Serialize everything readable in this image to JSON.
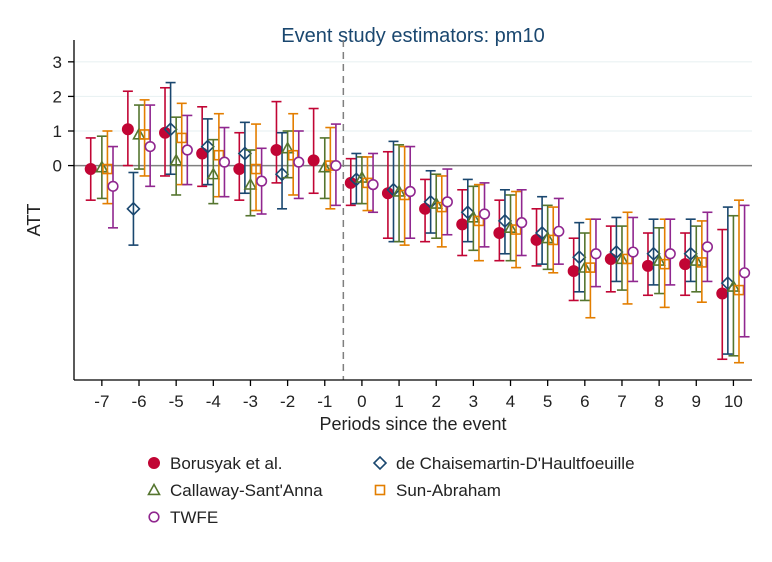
{
  "chart_data": {
    "type": "scatter",
    "title": "Event study estimators: pm10",
    "xlabel": "Periods since the event",
    "ylabel": "ATT",
    "x": [
      -7,
      -6,
      -5,
      -4,
      -3,
      -2,
      -1,
      0,
      1,
      2,
      3,
      4,
      5,
      6,
      7,
      8,
      9,
      10
    ],
    "x_tick_labels": [
      "-7",
      "-6",
      "-5",
      "-4",
      "-3",
      "-2",
      "-1",
      "0",
      "1",
      "2",
      "3",
      "4",
      "5",
      "6",
      "7",
      "8",
      "9",
      "10"
    ],
    "y_ticks": [
      3,
      2,
      1,
      0
    ],
    "y_tick_labels": [
      "3",
      "2",
      "1",
      "0"
    ],
    "ylim": [
      -6.2,
      3.4
    ],
    "xlim": [
      -7.75,
      10.5
    ],
    "event_line_x": -0.5,
    "zero_line_y": 0,
    "grid": true,
    "legend_position": "bottom",
    "series": [
      {
        "name": "Borusyak et al.",
        "marker": "filled-circle",
        "color": "#c10534",
        "offset": -0.3,
        "values": [
          -0.1,
          1.05,
          0.95,
          0.35,
          -0.1,
          0.45,
          0.15,
          -0.5,
          -0.8,
          -1.25,
          -1.7,
          -1.95,
          -2.15,
          -3.05,
          -2.7,
          -2.9,
          -2.85,
          -3.7
        ],
        "ci_low": [
          -1.0,
          0.0,
          -0.3,
          -0.6,
          -1.0,
          -0.5,
          -0.8,
          -1.15,
          -2.1,
          -2.2,
          -2.6,
          -2.75,
          -2.9,
          -3.9,
          -3.65,
          -3.75,
          -3.75,
          -5.6
        ],
        "ci_high": [
          0.8,
          2.15,
          2.25,
          1.7,
          0.95,
          1.85,
          1.65,
          0.2,
          0.4,
          -0.4,
          -0.7,
          -1.0,
          -1.25,
          -2.1,
          -1.75,
          -1.95,
          -1.95,
          -1.85
        ]
      },
      {
        "name": "de Chaisemartin-D'Haultfoeuille",
        "marker": "hollow-diamond",
        "color": "#1a476f",
        "offset": -0.15,
        "values": [
          null,
          -1.25,
          1.05,
          0.55,
          0.35,
          -0.25,
          null,
          -0.4,
          -0.7,
          -1.05,
          -1.35,
          -1.6,
          -1.95,
          -2.65,
          -2.5,
          -2.55,
          -2.55,
          -3.4
        ],
        "ci_low": [
          null,
          -2.3,
          -0.25,
          -0.55,
          -0.8,
          -1.25,
          null,
          -1.1,
          -2.2,
          -1.95,
          -2.2,
          -2.55,
          -2.85,
          -3.65,
          -3.35,
          -3.45,
          -3.35,
          -5.45
        ],
        "ci_high": [
          null,
          -0.2,
          2.4,
          1.35,
          1.25,
          0.95,
          null,
          0.35,
          0.7,
          -0.15,
          -0.4,
          -0.7,
          -0.9,
          -1.65,
          -1.5,
          -1.55,
          -1.55,
          -1.2
        ]
      },
      {
        "name": "Callaway-Sant'Anna",
        "marker": "hollow-triangle",
        "color": "#55752f",
        "offset": 0.0,
        "values": [
          -0.05,
          0.9,
          0.15,
          -0.25,
          -0.55,
          0.5,
          -0.05,
          -0.35,
          -0.75,
          -1.1,
          -1.5,
          -1.8,
          -2.1,
          -2.95,
          -2.7,
          -2.75,
          -2.75,
          -3.5
        ],
        "ci_low": [
          -0.95,
          -0.1,
          -0.85,
          -1.1,
          -1.45,
          -0.35,
          -0.95,
          -1.1,
          -2.2,
          -2.1,
          -2.45,
          -2.75,
          -3.0,
          -3.9,
          -3.6,
          -3.7,
          -3.65,
          -5.5
        ],
        "ci_high": [
          0.85,
          1.75,
          1.4,
          0.75,
          0.45,
          1.0,
          0.8,
          0.25,
          0.6,
          -0.25,
          -0.6,
          -0.85,
          -1.15,
          -1.95,
          -1.75,
          -1.8,
          -1.75,
          -1.45
        ]
      },
      {
        "name": "Sun-Abraham",
        "marker": "hollow-square",
        "color": "#e37e00",
        "offset": 0.15,
        "values": [
          -0.1,
          0.9,
          0.8,
          0.3,
          -0.1,
          0.3,
          0.0,
          -0.5,
          -0.85,
          -1.2,
          -1.6,
          -1.85,
          -2.15,
          -2.95,
          -2.7,
          -2.85,
          -2.8,
          -3.6
        ],
        "ci_low": [
          -1.1,
          -0.3,
          -0.55,
          -0.9,
          -1.3,
          -0.85,
          -1.25,
          -1.3,
          -2.3,
          -2.35,
          -2.75,
          -2.95,
          -3.1,
          -4.4,
          -4.0,
          -4.1,
          -3.95,
          -5.7
        ],
        "ci_high": [
          1.0,
          1.9,
          1.8,
          1.5,
          1.2,
          1.5,
          1.1,
          0.25,
          0.55,
          -0.3,
          -0.55,
          -0.75,
          -1.2,
          -1.55,
          -1.35,
          -1.55,
          -1.6,
          -1.0
        ]
      },
      {
        "name": "TWFE",
        "marker": "hollow-circle",
        "color": "#90278f",
        "offset": 0.3,
        "values": [
          -0.6,
          0.55,
          0.45,
          0.1,
          -0.45,
          0.1,
          0.0,
          -0.55,
          -0.75,
          -1.05,
          -1.4,
          -1.65,
          -1.9,
          -2.55,
          -2.5,
          -2.55,
          -2.35,
          -3.1
        ],
        "ci_low": [
          -1.8,
          -0.6,
          -0.55,
          -0.9,
          -1.4,
          -0.95,
          -1.15,
          -1.35,
          -2.1,
          -2.0,
          -2.35,
          -2.6,
          -2.85,
          -3.5,
          -3.35,
          -3.45,
          -3.35,
          -4.95
        ],
        "ci_high": [
          0.55,
          1.75,
          1.45,
          1.1,
          0.5,
          1.0,
          1.2,
          0.35,
          0.55,
          -0.1,
          -0.5,
          -0.7,
          -0.95,
          -1.55,
          -1.5,
          -1.55,
          -1.35,
          -1.15
        ]
      }
    ]
  },
  "legend": {
    "items": [
      {
        "label": "Borusyak et al.",
        "marker": "filled-circle",
        "color": "#c10534"
      },
      {
        "label": "de Chaisemartin-D'Haultfoeuille",
        "marker": "hollow-diamond",
        "color": "#1a476f"
      },
      {
        "label": "Callaway-Sant'Anna",
        "marker": "hollow-triangle",
        "color": "#55752f"
      },
      {
        "label": "Sun-Abraham",
        "marker": "hollow-square",
        "color": "#e37e00"
      },
      {
        "label": "TWFE",
        "marker": "hollow-circle",
        "color": "#90278f"
      }
    ]
  },
  "colors": {
    "axis": "#000000",
    "gridline": "#eaf2f3",
    "zero_line": "#7f7f7f",
    "event_line": "#7f7f7f",
    "title": "#1a476f"
  }
}
